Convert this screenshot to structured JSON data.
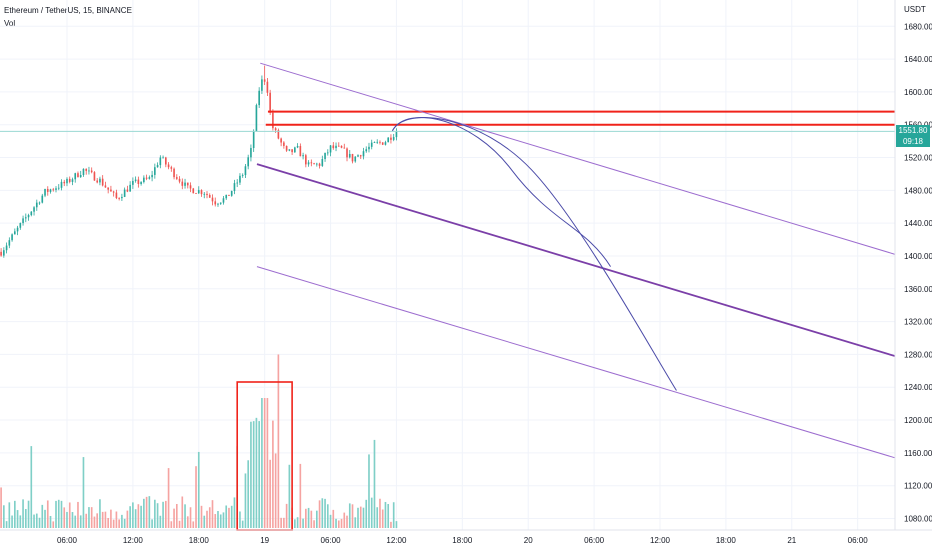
{
  "header": {
    "title": "Ethereum / TetherUS, 15, BINANCE",
    "volume_label": "Vol"
  },
  "price_axis": {
    "currency": "USDT",
    "last_price": "1551.80",
    "countdown": "09:18"
  },
  "colors": {
    "up": "#26a69a",
    "down": "#ef5350",
    "vol_up": "#7fcfc7",
    "vol_down": "#f5a3a1",
    "channel": "#9c6ccf",
    "channel_mid": "#7b3fa8",
    "resistance": "#f0231a",
    "arc": "#4b4ba8",
    "last_price_line": "#9ad8d3"
  },
  "chart_data": {
    "type": "candlestick",
    "symbol": "Ethereum / TetherUS",
    "interval": "15",
    "exchange": "BINANCE",
    "y_ticks": [
      1080,
      1120,
      1160,
      1200,
      1240,
      1280,
      1320,
      1360,
      1400,
      1440,
      1480,
      1520,
      1560,
      1600,
      1640,
      1680
    ],
    "ylim": [
      1066,
      1712
    ],
    "x_ticks": [
      {
        "label": "06:00",
        "t": -18
      },
      {
        "label": "12:00",
        "t": -12
      },
      {
        "label": "18:00",
        "t": -6
      },
      {
        "label": "19",
        "t": 0
      },
      {
        "label": "06:00",
        "t": 6
      },
      {
        "label": "12:00",
        "t": 12
      },
      {
        "label": "18:00",
        "t": 18
      },
      {
        "label": "20",
        "t": 24
      },
      {
        "label": "06:00",
        "t": 30
      },
      {
        "label": "12:00",
        "t": 36
      },
      {
        "label": "18:00",
        "t": 42
      },
      {
        "label": "21",
        "t": 48
      },
      {
        "label": "06:00",
        "t": 54
      }
    ],
    "xlim": [
      -24.1,
      57.4
    ],
    "price_waypoints": [
      {
        "t": -24.0,
        "p": 1405
      },
      {
        "t": -22.0,
        "p": 1442
      },
      {
        "t": -20.0,
        "p": 1478
      },
      {
        "t": -18.0,
        "p": 1490
      },
      {
        "t": -16.5,
        "p": 1505
      },
      {
        "t": -15.0,
        "p": 1492
      },
      {
        "t": -13.5,
        "p": 1470
      },
      {
        "t": -12.0,
        "p": 1488
      },
      {
        "t": -10.5,
        "p": 1494
      },
      {
        "t": -9.5,
        "p": 1520
      },
      {
        "t": -8.5,
        "p": 1504
      },
      {
        "t": -7.0,
        "p": 1482
      },
      {
        "t": -5.5,
        "p": 1478
      },
      {
        "t": -4.5,
        "p": 1466
      },
      {
        "t": -3.5,
        "p": 1470
      },
      {
        "t": -2.0,
        "p": 1500
      },
      {
        "t": -1.2,
        "p": 1530
      },
      {
        "t": -0.8,
        "p": 1575
      },
      {
        "t": -0.4,
        "p": 1612
      },
      {
        "t": 0.0,
        "p": 1615
      },
      {
        "t": 0.3,
        "p": 1600
      },
      {
        "t": 0.6,
        "p": 1560
      },
      {
        "t": 1.2,
        "p": 1545
      },
      {
        "t": 2.0,
        "p": 1525
      },
      {
        "t": 3.0,
        "p": 1530
      },
      {
        "t": 4.0,
        "p": 1510
      },
      {
        "t": 5.0,
        "p": 1512
      },
      {
        "t": 6.0,
        "p": 1532
      },
      {
        "t": 7.0,
        "p": 1530
      },
      {
        "t": 8.0,
        "p": 1518
      },
      {
        "t": 9.0,
        "p": 1528
      },
      {
        "t": 10.0,
        "p": 1536
      },
      {
        "t": 11.0,
        "p": 1540
      },
      {
        "t": 12.0,
        "p": 1552
      }
    ],
    "candle_range": {
      "start_t": -24.0,
      "end_t": 12.0,
      "interval_hours": 0.25
    },
    "volume_highlight": {
      "t_start": -2.5,
      "t_end": 2.5
    },
    "resistance_lines": [
      {
        "price": 1576,
        "t_start": 0.3,
        "t_end": 57.4
      },
      {
        "price": 1560,
        "t_start": 0.1,
        "t_end": 57.4
      }
    ],
    "last_price_line": 1551.8,
    "channel": {
      "upper": [
        {
          "t": -0.4,
          "p": 1635
        },
        {
          "t": 57.4,
          "p": 1402
        }
      ],
      "middle": [
        {
          "t": -0.7,
          "p": 1512
        },
        {
          "t": 57.4,
          "p": 1278
        }
      ],
      "lower": [
        {
          "t": -0.7,
          "p": 1387
        },
        {
          "t": 57.4,
          "p": 1154
        }
      ]
    },
    "projected_arcs": [
      {
        "from": {
          "t": 12.0,
          "p": 1560
        },
        "to": {
          "t": 31.5,
          "p": 1387
        }
      },
      {
        "from": {
          "t": 12.0,
          "p": 1560
        },
        "to": {
          "t": 37.5,
          "p": 1236
        }
      }
    ]
  }
}
